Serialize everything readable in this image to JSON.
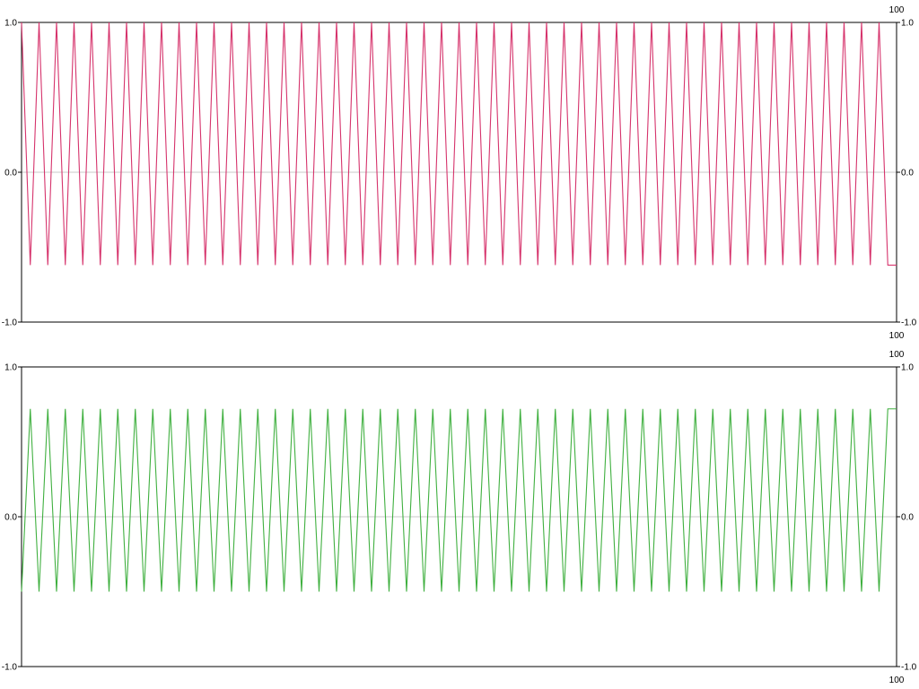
{
  "colors": {
    "background": "#ffffff",
    "axis": "#000000",
    "zero_line": "#c8c8c8"
  },
  "chart_data": [
    {
      "type": "line",
      "title": "",
      "xlabel": "",
      "ylabel": "",
      "color": "#d6336c",
      "ylim": [
        -1.0,
        1.0
      ],
      "y_ticks_left": [
        "1.0",
        "0.0",
        "-1.0"
      ],
      "y_ticks_right": [
        "1.0",
        "0.0",
        "-1.0"
      ],
      "x_label_top_right": "100",
      "x_label_bottom_right": "100",
      "grid": false,
      "zero_line": true,
      "series": [
        {
          "pattern": "triangle-wave",
          "periods": 50,
          "start": 1.0,
          "max": 1.0,
          "min": -0.62,
          "end": -0.62
        }
      ]
    },
    {
      "type": "line",
      "title": "",
      "xlabel": "",
      "ylabel": "",
      "color": "#40b040",
      "ylim": [
        -1.0,
        1.0
      ],
      "y_ticks_left": [
        "1.0",
        "0.0",
        "-1.0"
      ],
      "y_ticks_right": [
        "1.0",
        "0.0",
        "-1.0"
      ],
      "x_label_top_right": "100",
      "x_label_bottom_right": "100",
      "grid": false,
      "zero_line": true,
      "series": [
        {
          "pattern": "triangle-wave",
          "periods": 50,
          "start": -0.5,
          "max": 0.72,
          "min": -0.5,
          "end": 0.72
        }
      ]
    }
  ]
}
